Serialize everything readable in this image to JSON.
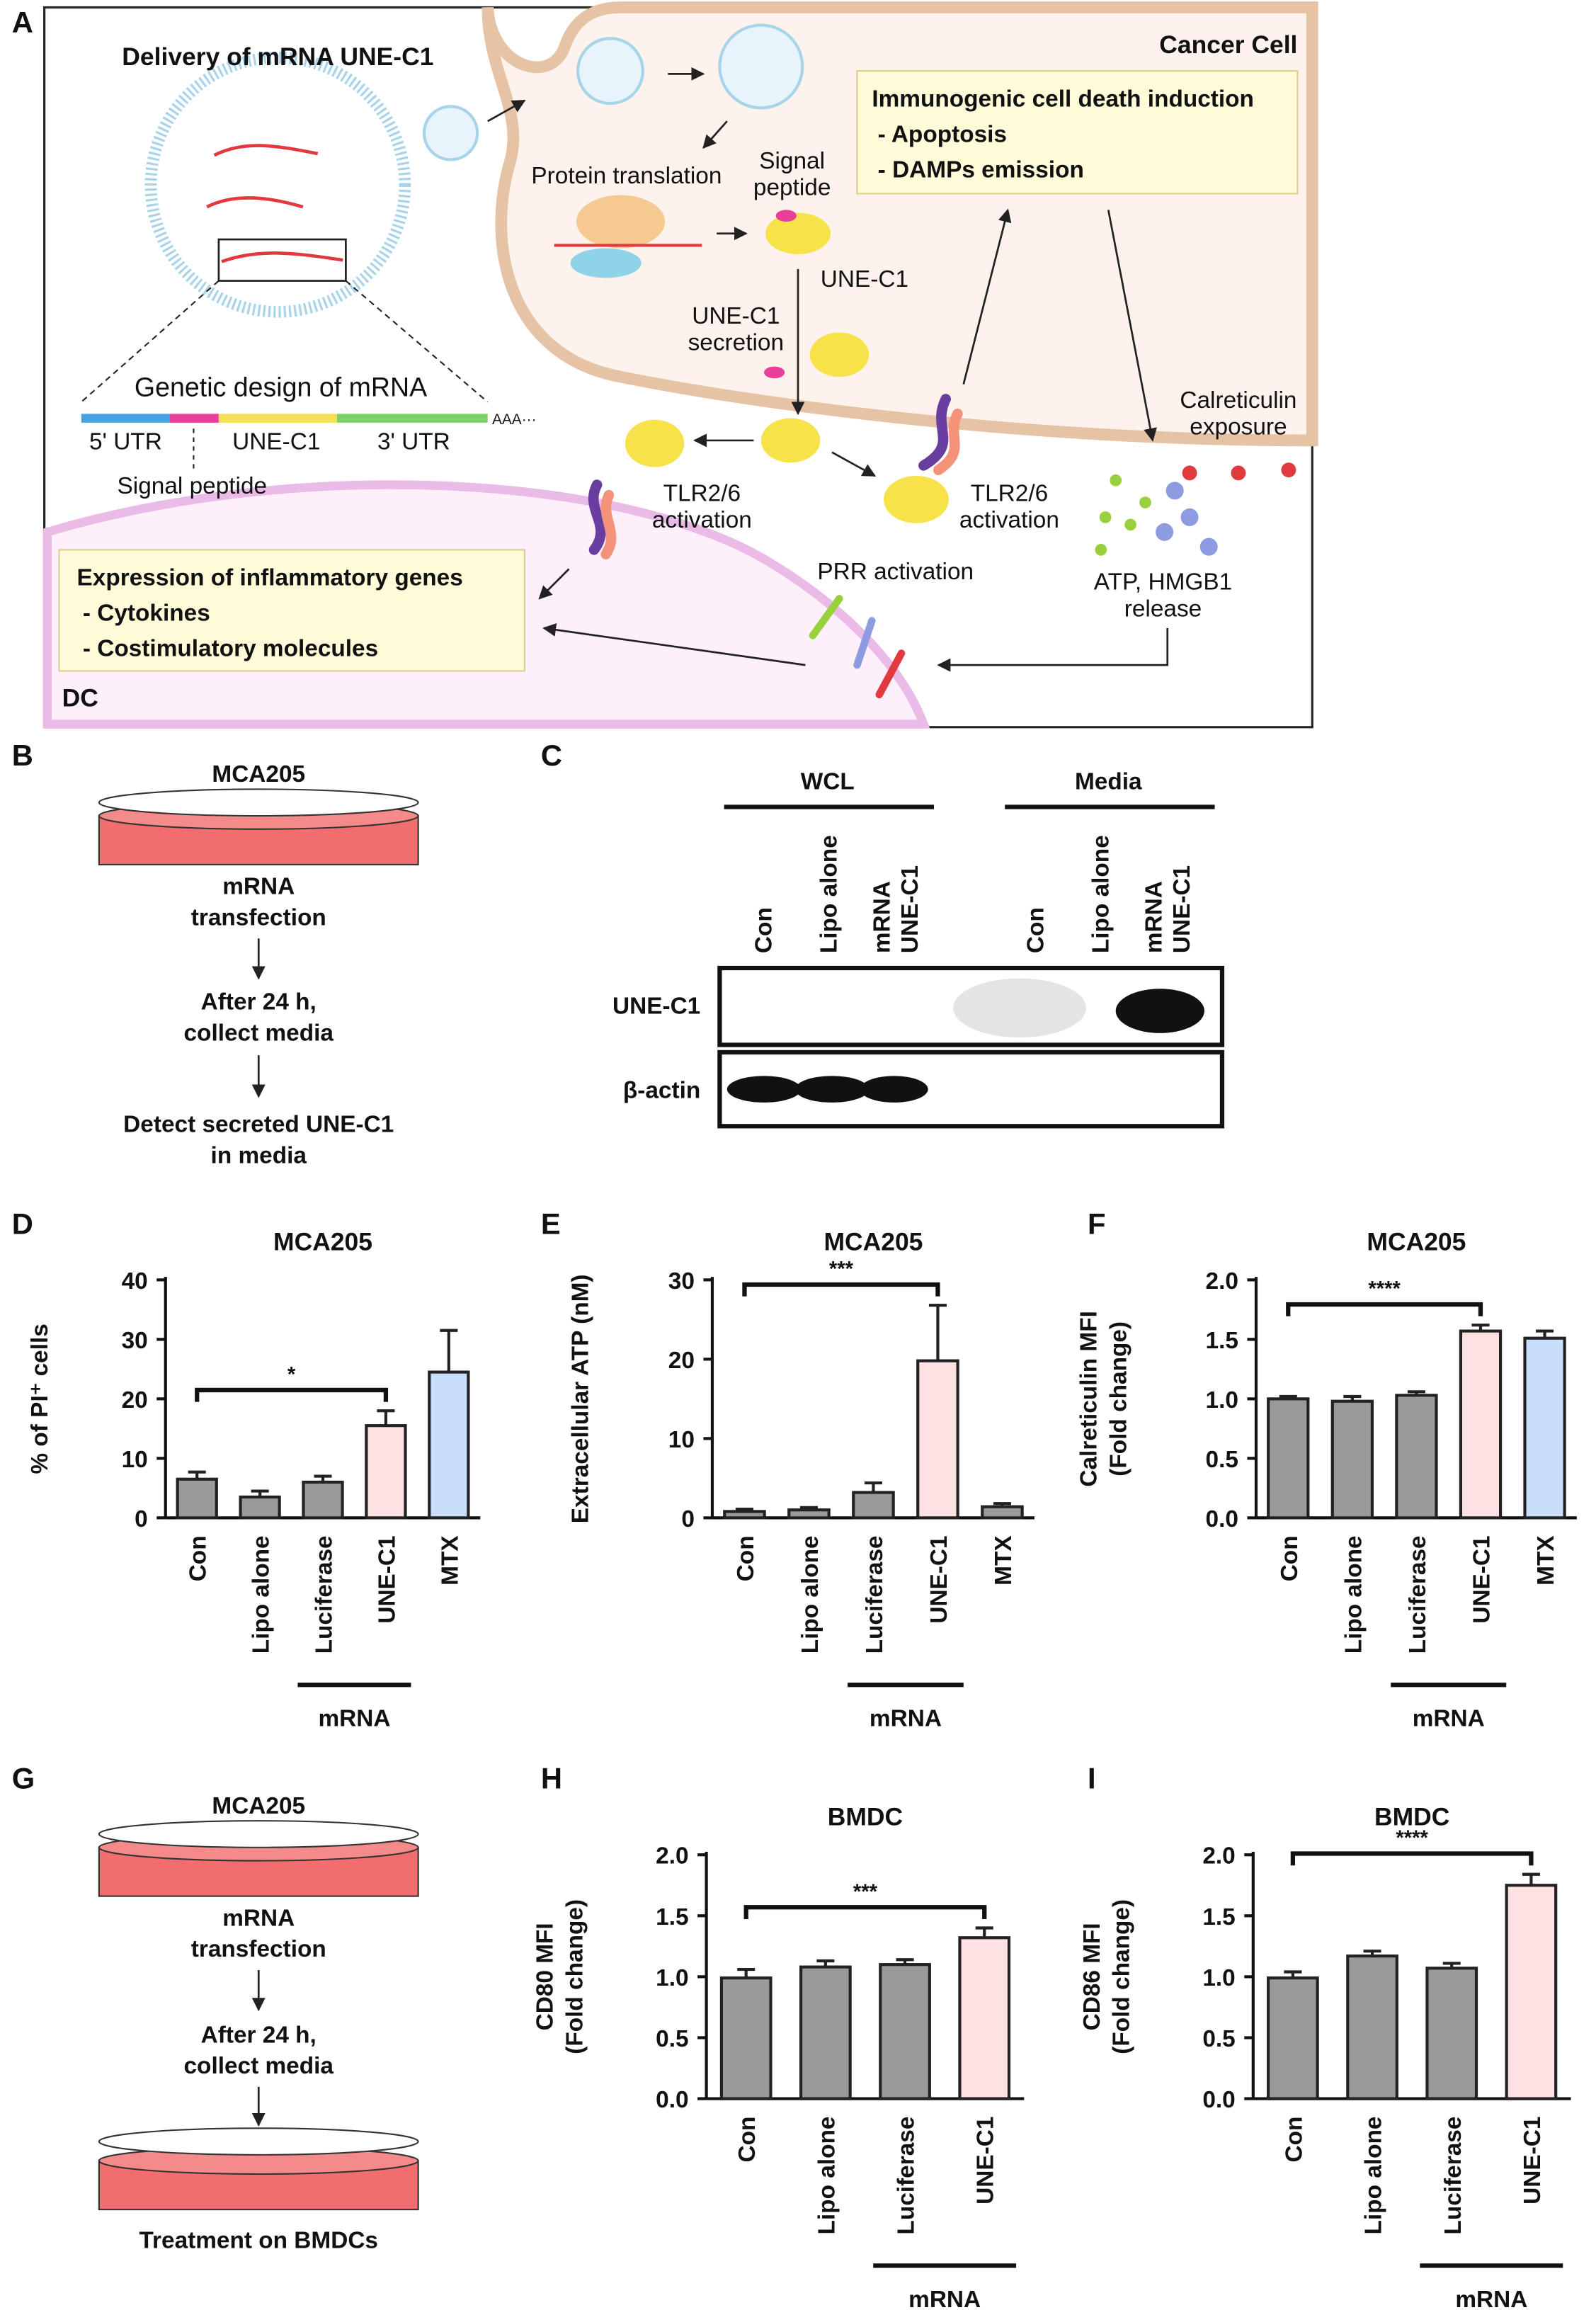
{
  "panel_a": {
    "letter": "A",
    "title": "Delivery of mRNA UNE-C1",
    "cancer_cell": "Cancer Cell",
    "icd_box": [
      "Immunogenic cell death induction",
      "- Apoptosis",
      "- DAMPs emission"
    ],
    "protein_translation": "Protein translation",
    "signal_peptide_top": [
      "Signal",
      "peptide"
    ],
    "une_c1": "UNE-C1",
    "secretion": [
      "UNE-C1",
      "secretion"
    ],
    "genetic_design": "Genetic design of mRNA",
    "utr5": "5' UTR",
    "cds": "UNE-C1",
    "utr3": "3' UTR",
    "polya": "AAA···",
    "signal_peptide": "Signal peptide",
    "tlr_left": [
      "TLR2/6",
      "activation"
    ],
    "tlr_right": [
      "TLR2/6",
      "activation"
    ],
    "calreticulin": [
      "Calreticulin",
      "exposure"
    ],
    "atp": [
      "ATP, HMGB1",
      "release"
    ],
    "prr": "PRR activation",
    "expression_box": [
      "Expression of inflammatory genes",
      "- Cytokines",
      "- Costimulatory molecules"
    ],
    "dc": "DC"
  },
  "panel_b": {
    "letter": "B",
    "cell": "MCA205",
    "steps": [
      [
        "mRNA",
        "transfection"
      ],
      [
        "After 24 h,",
        "collect media"
      ],
      [
        "Detect secreted UNE-C1",
        "in media"
      ]
    ]
  },
  "panel_c": {
    "letter": "C",
    "groups": [
      "WCL",
      "Media"
    ],
    "lanes": [
      [
        "Con"
      ],
      [
        "Lipo alone"
      ],
      [
        "mRNA",
        "UNE-C1"
      ],
      [
        "Con"
      ],
      [
        "Lipo alone"
      ],
      [
        "mRNA",
        "UNE-C1"
      ]
    ],
    "rows": [
      "UNE-C1",
      "β-actin"
    ]
  },
  "panel_g": {
    "letter": "G",
    "cell": "MCA205",
    "steps": [
      [
        "mRNA",
        "transfection"
      ],
      [
        "After 24 h,",
        "collect media"
      ]
    ],
    "final": "Treatment on BMDCs"
  },
  "chart_data": [
    {
      "type": "bar",
      "letter": "D",
      "title": "MCA205",
      "ylabel": [
        "% of PI⁺ cells"
      ],
      "categories": [
        "Con",
        "Lipo alone",
        "Luciferase",
        "UNE-C1",
        "MTX"
      ],
      "values": [
        6.5,
        3.5,
        6,
        15.5,
        24.5
      ],
      "errors": [
        1.2,
        1,
        1,
        2.5,
        7
      ],
      "colors": [
        "#9a9a9a",
        "#9a9a9a",
        "#9a9a9a",
        "#fde1e3",
        "#c9defa"
      ],
      "ylim": [
        0,
        40
      ],
      "yticks": [
        0,
        10,
        20,
        30,
        40
      ],
      "significance": {
        "label": "*",
        "from": "Con",
        "to": "UNE-C1"
      },
      "group": {
        "label": "mRNA",
        "from": "Luciferase",
        "to": "UNE-C1"
      }
    },
    {
      "type": "bar",
      "letter": "E",
      "title": "MCA205",
      "ylabel": [
        "Extracellular ATP (nM)"
      ],
      "categories": [
        "Con",
        "Lipo alone",
        "Luciferase",
        "UNE-C1",
        "MTX"
      ],
      "values": [
        0.8,
        1,
        3.2,
        19.8,
        1.4
      ],
      "errors": [
        0.3,
        0.3,
        1.2,
        7,
        0.4
      ],
      "colors": [
        "#9a9a9a",
        "#9a9a9a",
        "#9a9a9a",
        "#fde1e3",
        "#9a9a9a"
      ],
      "ylim": [
        0,
        30
      ],
      "yticks": [
        0,
        10,
        20,
        30
      ],
      "significance": {
        "label": "***",
        "from": "Con",
        "to": "UNE-C1"
      },
      "group": {
        "label": "mRNA",
        "from": "Luciferase",
        "to": "UNE-C1"
      }
    },
    {
      "type": "bar",
      "letter": "F",
      "title": "MCA205",
      "ylabel": [
        "Calreticulin MFI",
        "(Fold change)"
      ],
      "categories": [
        "Con",
        "Lipo alone",
        "Luciferase",
        "UNE-C1",
        "MTX"
      ],
      "values": [
        1,
        0.98,
        1.03,
        1.57,
        1.51
      ],
      "errors": [
        0.02,
        0.04,
        0.03,
        0.05,
        0.06
      ],
      "colors": [
        "#9a9a9a",
        "#9a9a9a",
        "#9a9a9a",
        "#fde1e3",
        "#c9defa"
      ],
      "ylim": [
        0,
        2
      ],
      "yticks": [
        {
          "value": 0,
          "label": "0.0"
        },
        {
          "value": 0.5,
          "label": "0.5"
        },
        {
          "value": 1,
          "label": "1.0"
        },
        {
          "value": 1.5,
          "label": "1.5"
        },
        {
          "value": 2,
          "label": "2.0"
        }
      ],
      "significance": {
        "label": "****",
        "from": "Con",
        "to": "UNE-C1"
      },
      "group": {
        "label": "mRNA",
        "from": "Luciferase",
        "to": "UNE-C1"
      }
    },
    {
      "type": "bar",
      "letter": "H",
      "title": "BMDC",
      "ylabel": [
        "CD80 MFI",
        "(Fold change)"
      ],
      "categories": [
        "Con",
        "Lipo alone",
        "Luciferase",
        "UNE-C1"
      ],
      "values": [
        0.99,
        1.08,
        1.1,
        1.32
      ],
      "errors": [
        0.07,
        0.05,
        0.04,
        0.08
      ],
      "colors": [
        "#9a9a9a",
        "#9a9a9a",
        "#9a9a9a",
        "#fde1e3"
      ],
      "ylim": [
        0,
        2
      ],
      "yticks": [
        {
          "value": 0,
          "label": "0.0"
        },
        {
          "value": 0.5,
          "label": "0.5"
        },
        {
          "value": 1,
          "label": "1.0"
        },
        {
          "value": 1.5,
          "label": "1.5"
        },
        {
          "value": 2,
          "label": "2.0"
        }
      ],
      "significance": {
        "label": "***",
        "from": "Con",
        "to": "UNE-C1"
      },
      "group": {
        "label": "mRNA",
        "from": "Luciferase",
        "to": "UNE-C1"
      }
    },
    {
      "type": "bar",
      "letter": "I",
      "title": "BMDC",
      "ylabel": [
        "CD86 MFI",
        "(Fold change)"
      ],
      "categories": [
        "Con",
        "Lipo alone",
        "Luciferase",
        "UNE-C1"
      ],
      "values": [
        0.99,
        1.17,
        1.07,
        1.75
      ],
      "errors": [
        0.05,
        0.04,
        0.04,
        0.09
      ],
      "colors": [
        "#9a9a9a",
        "#9a9a9a",
        "#9a9a9a",
        "#fde1e3"
      ],
      "ylim": [
        0,
        2
      ],
      "yticks": [
        {
          "value": 0,
          "label": "0.0"
        },
        {
          "value": 0.5,
          "label": "0.5"
        },
        {
          "value": 1,
          "label": "1.0"
        },
        {
          "value": 1.5,
          "label": "1.5"
        },
        {
          "value": 2,
          "label": "2.0"
        }
      ],
      "significance": {
        "label": "****",
        "from": "Con",
        "to": "UNE-C1"
      },
      "group": {
        "label": "mRNA",
        "from": "Luciferase",
        "to": "UNE-C1"
      }
    }
  ]
}
